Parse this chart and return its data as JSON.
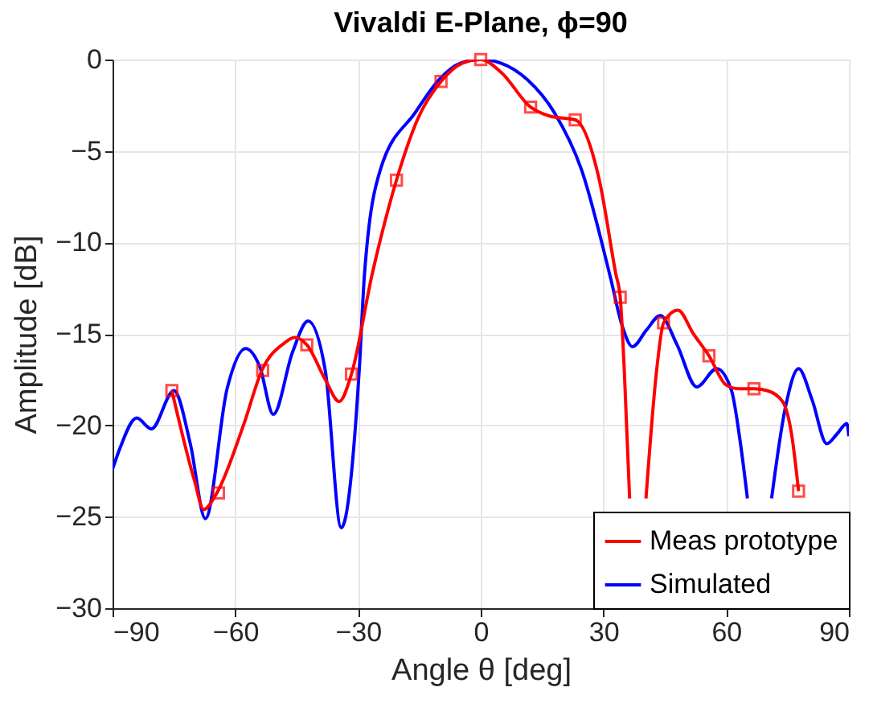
{
  "chart_data": {
    "type": "line",
    "title": "Vivaldi E-Plane, ϕ=90",
    "xlabel": "Angle θ [deg]",
    "ylabel": "Amplitude [dB]",
    "xlim": [
      -90,
      90
    ],
    "xticks": [
      -90,
      -60,
      -30,
      0,
      30,
      60,
      90
    ],
    "ylim": [
      -30,
      0
    ],
    "yticks": [
      -30,
      -25,
      -20,
      -15,
      -10,
      -5,
      0
    ],
    "grid": true,
    "legend": "bottom right",
    "line_style": "solid",
    "series": [
      {
        "name": "Meas prototype",
        "color": "#ff0000",
        "marker": "none",
        "x": [
          -75.5,
          -70,
          -67.7,
          -64.5,
          -58,
          -53.5,
          -48,
          -45.5,
          -42.5,
          -38,
          -34.6,
          -31.6,
          -26.5,
          -20.6,
          -15.3,
          -9.7,
          -4.5,
          0,
          5,
          12.2,
          17,
          23.1,
          29,
          33,
          34.1,
          35.1,
          36.4,
          38.4,
          40.4,
          43,
          44.7,
          48.2,
          52,
          55.8,
          60,
          63,
          66.8,
          70,
          73.8,
          76,
          77.7
        ],
        "values": [
          -18.1,
          -23,
          -24.6,
          -23.7,
          -20,
          -17,
          -15.5,
          -15.2,
          -15.6,
          -17.5,
          -18.7,
          -17.2,
          -11.7,
          -6.6,
          -3.2,
          -1.2,
          -0.2,
          0,
          -0.7,
          -2.6,
          -3.1,
          -3.3,
          -6.6,
          -11.7,
          -13,
          -17,
          -24,
          null,
          -24,
          -17,
          -14.4,
          -13.7,
          -15,
          -16.2,
          -17.8,
          -18,
          -18,
          -18.1,
          -18.7,
          -20.5,
          -23.6
        ]
      },
      {
        "color": "#ff0000",
        "type": "scatter",
        "marker": "square",
        "x": [
          -75.5,
          -64.1,
          -53.3,
          -42.5,
          -31.6,
          -20.6,
          -9.7,
          0,
          12.2,
          23.1,
          34.1,
          44.7,
          55.8,
          66.8,
          77.7
        ],
        "values": [
          -18.1,
          -23.7,
          -17,
          -15.6,
          -17.2,
          -6.6,
          -1.2,
          0,
          -2.6,
          -3.3,
          -13,
          -14.4,
          -16.2,
          -18,
          -23.6
        ]
      },
      {
        "name": "Simulated",
        "color": "#0000ff",
        "marker": "none",
        "x": [
          -90,
          -88.1,
          -84.1,
          -80.5,
          -75,
          -71,
          -67.3,
          -62,
          -57.5,
          -54,
          -50.7,
          -46,
          -42.2,
          -38,
          -34.1,
          -29.7,
          -28.4,
          -24.5,
          -16,
          -10.2,
          -5,
          0,
          5,
          11.4,
          18,
          24.6,
          31.8,
          34.5,
          37.1,
          40.5,
          43.9,
          48,
          52.8,
          57.7,
          61.3,
          63.5,
          65.2,
          68,
          71.1,
          74.5,
          77.7,
          81,
          84.6,
          87,
          89.5,
          90
        ],
        "values": [
          -22.4,
          -21.2,
          -19.6,
          -20.2,
          -18.1,
          -21,
          -25.1,
          -18,
          -15.8,
          -16.8,
          -19.4,
          -16,
          -14.3,
          -17,
          -25.6,
          -17,
          -11.7,
          -6,
          -2.9,
          -1.1,
          -0.2,
          0,
          -0.2,
          -1.1,
          -2.9,
          -6,
          -12,
          -14.5,
          -15.7,
          -14.8,
          -14,
          -15.6,
          -17.9,
          -16.9,
          -18.1,
          -21,
          -24,
          null,
          -24,
          -19,
          -16.9,
          -18.6,
          -21,
          -20.5,
          -19.9,
          -20.6
        ]
      }
    ]
  }
}
